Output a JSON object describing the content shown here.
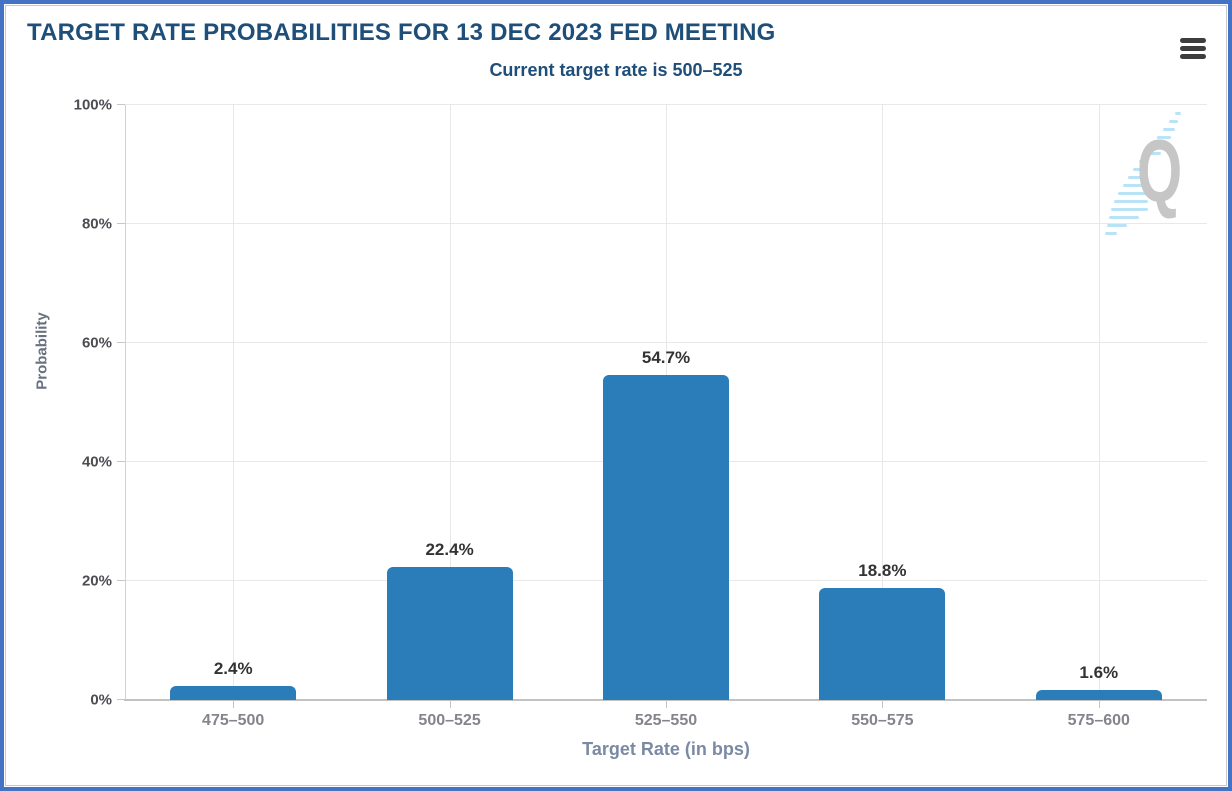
{
  "header": {
    "title": "TARGET RATE PROBABILITIES FOR 13 DEC 2023 FED MEETING",
    "subtitle": "Current target rate is 500–525",
    "menu_icon": "hamburger-menu-icon"
  },
  "chart_data": {
    "type": "bar",
    "title": "TARGET RATE PROBABILITIES FOR 13 DEC 2023 FED MEETING",
    "subtitle": "Current target rate is 500–525",
    "categories": [
      "475–500",
      "500–525",
      "525–550",
      "550–575",
      "575–600"
    ],
    "values": [
      2.4,
      22.4,
      54.7,
      18.8,
      1.6
    ],
    "value_labels": [
      "2.4%",
      "22.4%",
      "54.7%",
      "18.8%",
      "1.6%"
    ],
    "xlabel": "Target Rate (in bps)",
    "ylabel": "Probability",
    "ylim": [
      0,
      100
    ],
    "yticks": [
      "0%",
      "20%",
      "40%",
      "60%",
      "80%",
      "100%"
    ],
    "grid": true,
    "legend": "none",
    "bar_color": "#2a7db9"
  },
  "watermark": {
    "icon": "quikstrike-q-logo",
    "letter": "Q",
    "q_color": "#c6c6c6",
    "dash_color": "#b9e3f6"
  },
  "colors": {
    "frame_border": "#4472c4",
    "title_text": "#1f4e79",
    "axis_title_text": "#7b8aa4",
    "tick_text": "#84848c",
    "bar": "#2a7db9"
  }
}
